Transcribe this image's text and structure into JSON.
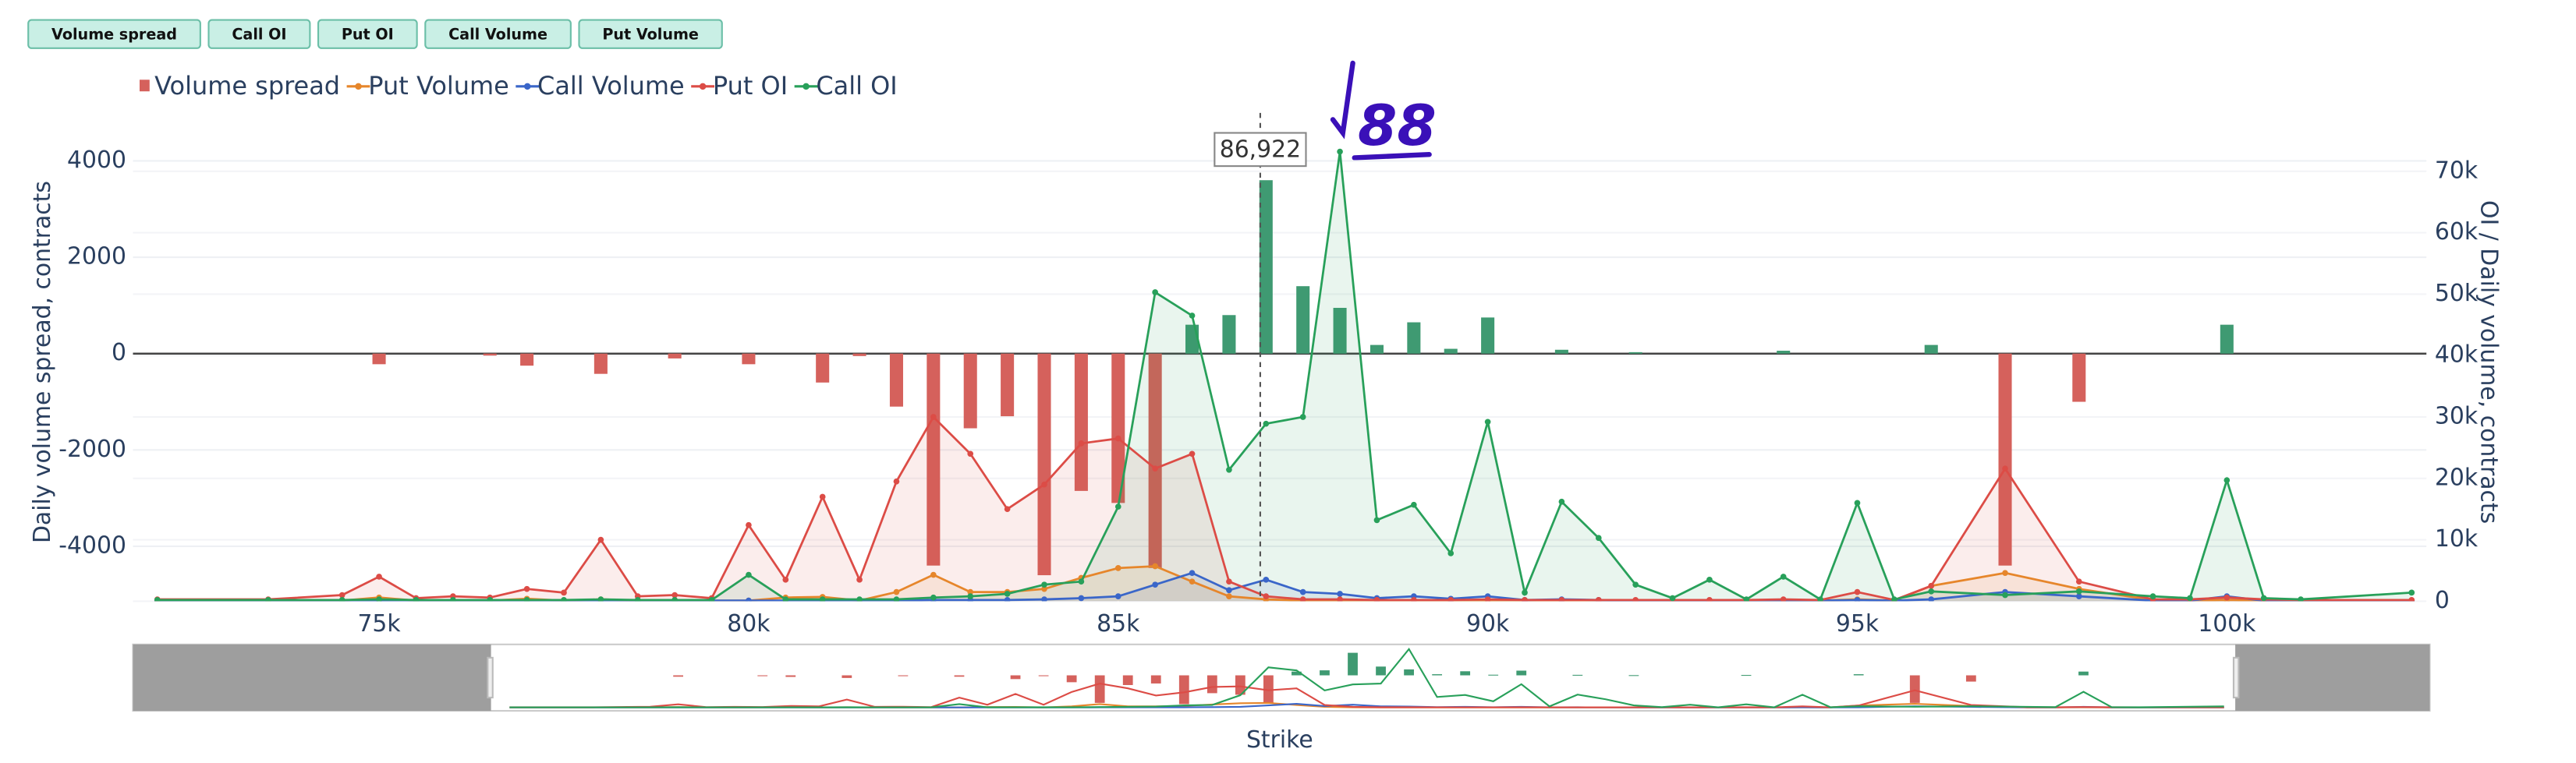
{
  "chart_data": {
    "type": "combo",
    "buttons": [
      "Volume spread",
      "Call OI",
      "Put OI",
      "Call Volume",
      "Put Volume"
    ],
    "y_label": "Daily volume spread, contracts",
    "y2_label": "OI / Daily volume, contracts",
    "x_label": "Strike",
    "xlim": [
      71670,
      102700
    ],
    "slider_xlim": [
      65300,
      106160
    ],
    "xticks": [
      {
        "value": 75000,
        "label": "75k"
      },
      {
        "value": 80000,
        "label": "80k"
      },
      {
        "value": 85000,
        "label": "85k"
      },
      {
        "value": 90000,
        "label": "90k"
      },
      {
        "value": 95000,
        "label": "95k"
      },
      {
        "value": 100000,
        "label": "100k"
      }
    ],
    "ylim": [
      -5140,
      4410
    ],
    "yticks": [
      -4000,
      -2000,
      0,
      2000,
      4000
    ],
    "y2lim": [
      0,
      74900
    ],
    "y2ticks": [
      0,
      {
        "value": 10000,
        "label": "10k"
      },
      {
        "value": 20000,
        "label": "20k"
      },
      {
        "value": 30000,
        "label": "30k"
      },
      {
        "value": 40000,
        "label": "40k"
      },
      {
        "value": 50000,
        "label": "50k"
      },
      {
        "value": 60000,
        "label": "60k"
      },
      {
        "value": 70000,
        "label": "70k"
      }
    ],
    "grid": true,
    "marker": {
      "value": 86922,
      "label": "86,922"
    },
    "handwritten_note": "88",
    "x": [
      72000,
      73500,
      74500,
      75000,
      75500,
      76000,
      76500,
      77000,
      77500,
      78000,
      78500,
      79000,
      79500,
      80000,
      80500,
      81000,
      81500,
      82000,
      82500,
      83000,
      83500,
      84000,
      84500,
      85000,
      85500,
      86000,
      86500,
      87000,
      87500,
      88000,
      88500,
      89000,
      89500,
      90000,
      90500,
      91000,
      91500,
      92000,
      92500,
      93000,
      93500,
      94000,
      94500,
      95000,
      95500,
      96000,
      97000,
      98000,
      99000,
      99500,
      100000,
      100500,
      101000,
      102500
    ],
    "series": [
      {
        "name": "Volume spread",
        "type": "bar",
        "colors": {
          "positive": "#3f9a72",
          "negative": "#d5615c"
        },
        "x": [
          75000,
          76500,
          77000,
          78000,
          79000,
          80000,
          81000,
          81500,
          82000,
          82500,
          83000,
          83500,
          84000,
          84500,
          85000,
          85500,
          86000,
          86500,
          87000,
          87500,
          88000,
          88500,
          89000,
          89500,
          90000,
          91000,
          92000,
          94000,
          96000,
          97000,
          98000,
          100000
        ],
        "values": [
          -220,
          -40,
          -250,
          -420,
          -100,
          -220,
          -600,
          -50,
          -1100,
          -4400,
          -1550,
          -1300,
          -4600,
          -2850,
          -3100,
          -4450,
          600,
          800,
          3600,
          1400,
          950,
          180,
          650,
          100,
          750,
          80,
          30,
          60,
          180,
          -4400,
          -1000,
          600
        ]
      },
      {
        "name": "Put Volume",
        "type": "line",
        "axis": "y2",
        "color": "#e6862b",
        "values": [
          100,
          100,
          100,
          600,
          100,
          100,
          100,
          400,
          100,
          300,
          100,
          100,
          100,
          100,
          600,
          700,
          100,
          1500,
          4300,
          1500,
          1500,
          2000,
          3800,
          5400,
          5700,
          3200,
          800,
          300,
          100,
          100,
          100,
          100,
          100,
          100,
          100,
          100,
          100,
          100,
          100,
          100,
          100,
          100,
          100,
          300,
          100,
          2500,
          4600,
          2000,
          200,
          100,
          200,
          100,
          100,
          100
        ]
      },
      {
        "name": "Call Volume",
        "type": "line",
        "axis": "y2",
        "color": "#3a66c9",
        "values": [
          100,
          100,
          100,
          100,
          100,
          100,
          100,
          100,
          100,
          100,
          100,
          100,
          100,
          100,
          100,
          100,
          100,
          100,
          200,
          200,
          200,
          300,
          500,
          800,
          2700,
          4600,
          1800,
          3500,
          1500,
          1200,
          500,
          800,
          400,
          800,
          200,
          300,
          200,
          100,
          100,
          100,
          100,
          100,
          100,
          200,
          100,
          300,
          1500,
          800,
          100,
          100,
          800,
          100,
          100,
          100
        ]
      },
      {
        "name": "Put OI",
        "type": "line",
        "axis": "y2",
        "color": "#dc4c46",
        "values": [
          300,
          300,
          1000,
          4000,
          500,
          800,
          600,
          2000,
          1400,
          10000,
          800,
          1000,
          500,
          12400,
          3500,
          17000,
          3500,
          19500,
          30000,
          24000,
          15000,
          19000,
          25700,
          26500,
          21600,
          24000,
          3200,
          800,
          300,
          300,
          200,
          200,
          200,
          300,
          200,
          200,
          200,
          200,
          200,
          200,
          200,
          300,
          200,
          1500,
          200,
          2500,
          21600,
          3200,
          300,
          300,
          600,
          300,
          200,
          200
        ]
      },
      {
        "name": "Call OI",
        "type": "line",
        "axis": "y2",
        "color": "#28a05a",
        "values": [
          200,
          200,
          200,
          300,
          200,
          200,
          200,
          200,
          200,
          300,
          200,
          200,
          200,
          4300,
          300,
          300,
          300,
          300,
          600,
          800,
          1200,
          2700,
          3200,
          15400,
          50300,
          46500,
          21400,
          28900,
          30000,
          73200,
          13200,
          15700,
          7800,
          29200,
          1400,
          16200,
          10300,
          2700,
          500,
          3500,
          300,
          4000,
          300,
          16000,
          300,
          1600,
          1000,
          1600,
          800,
          500,
          19700,
          500,
          300,
          1400
        ]
      }
    ]
  }
}
